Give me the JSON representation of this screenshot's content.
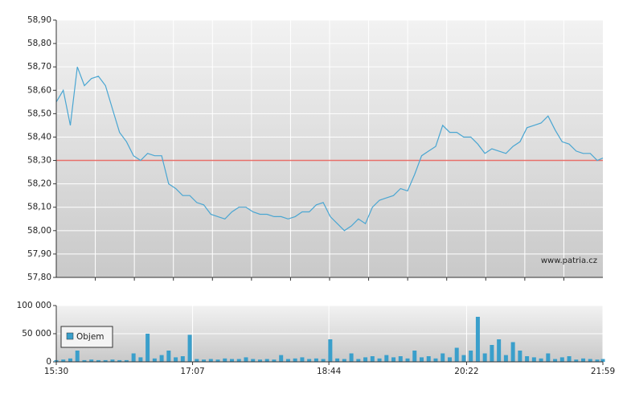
{
  "chart_data": [
    {
      "type": "line",
      "xlim": [
        "15:30",
        "21:59"
      ],
      "ylim": [
        57.8,
        58.9
      ],
      "yticks": [
        {
          "value": 57.8,
          "label": "57,80"
        },
        {
          "value": 57.9,
          "label": "57,90"
        },
        {
          "value": 58.0,
          "label": "58,00"
        },
        {
          "value": 58.1,
          "label": "58,10"
        },
        {
          "value": 58.2,
          "label": "58,20"
        },
        {
          "value": 58.3,
          "label": "58,30"
        },
        {
          "value": 58.4,
          "label": "58,40"
        },
        {
          "value": 58.5,
          "label": "58,50"
        },
        {
          "value": 58.6,
          "label": "58,60"
        },
        {
          "value": 58.7,
          "label": "58,70"
        },
        {
          "value": 58.8,
          "label": "58,80"
        },
        {
          "value": 58.9,
          "label": "58,90"
        }
      ],
      "grid": true,
      "reference_line": {
        "value": 58.3,
        "color": "#e8706a"
      },
      "annotation": "www.patria.cz",
      "x": [
        "15:30",
        "15:35",
        "15:40",
        "15:45",
        "15:50",
        "15:55",
        "16:00",
        "16:05",
        "16:10",
        "16:15",
        "16:20",
        "16:25",
        "16:30",
        "16:35",
        "16:40",
        "16:45",
        "16:50",
        "16:55",
        "17:00",
        "17:05",
        "17:10",
        "17:15",
        "17:20",
        "17:25",
        "17:30",
        "17:35",
        "17:40",
        "17:45",
        "17:50",
        "17:55",
        "18:00",
        "18:05",
        "18:10",
        "18:15",
        "18:20",
        "18:25",
        "18:30",
        "18:35",
        "18:40",
        "18:45",
        "18:50",
        "18:55",
        "19:00",
        "19:05",
        "19:10",
        "19:15",
        "19:20",
        "19:25",
        "19:30",
        "19:35",
        "19:40",
        "19:45",
        "19:50",
        "19:55",
        "20:00",
        "20:05",
        "20:10",
        "20:15",
        "20:20",
        "20:25",
        "20:30",
        "20:35",
        "20:40",
        "20:45",
        "20:50",
        "20:55",
        "21:00",
        "21:05",
        "21:10",
        "21:15",
        "21:20",
        "21:25",
        "21:30",
        "21:35",
        "21:40",
        "21:45",
        "21:50",
        "21:55",
        "21:59"
      ],
      "series": [
        {
          "color": "#4aa6d2",
          "values": [
            58.55,
            58.6,
            58.45,
            58.7,
            58.62,
            58.65,
            58.66,
            58.62,
            58.52,
            58.42,
            58.38,
            58.32,
            58.3,
            58.33,
            58.32,
            58.32,
            58.2,
            58.18,
            58.15,
            58.15,
            58.12,
            58.11,
            58.07,
            58.06,
            58.05,
            58.08,
            58.1,
            58.1,
            58.08,
            58.07,
            58.07,
            58.06,
            58.06,
            58.05,
            58.06,
            58.08,
            58.08,
            58.11,
            58.12,
            58.06,
            58.03,
            58.0,
            58.02,
            58.05,
            58.03,
            58.1,
            58.13,
            58.14,
            58.15,
            58.18,
            58.17,
            58.24,
            58.32,
            58.34,
            58.36,
            58.45,
            58.42,
            58.42,
            58.4,
            58.4,
            58.37,
            58.33,
            58.35,
            58.34,
            58.33,
            58.36,
            58.38,
            58.44,
            58.45,
            58.46,
            58.49,
            58.43,
            58.38,
            58.37,
            58.34,
            58.33,
            58.33,
            58.3,
            58.31
          ]
        }
      ]
    },
    {
      "type": "bar",
      "xlim": [
        "15:30",
        "21:59"
      ],
      "xticks": [
        "15:30",
        "17:07",
        "18:44",
        "20:22",
        "21:59"
      ],
      "ylim": [
        0,
        100000
      ],
      "yticks": [
        0,
        {
          "value": 50000,
          "label": "50 000"
        },
        {
          "value": 100000,
          "label": "100 000"
        }
      ],
      "grid": true,
      "legend": "top-left",
      "x": [
        "15:30",
        "15:35",
        "15:40",
        "15:45",
        "15:50",
        "15:55",
        "16:00",
        "16:05",
        "16:10",
        "16:15",
        "16:20",
        "16:25",
        "16:30",
        "16:35",
        "16:40",
        "16:45",
        "16:50",
        "16:55",
        "17:00",
        "17:05",
        "17:10",
        "17:15",
        "17:20",
        "17:25",
        "17:30",
        "17:35",
        "17:40",
        "17:45",
        "17:50",
        "17:55",
        "18:00",
        "18:05",
        "18:10",
        "18:15",
        "18:20",
        "18:25",
        "18:30",
        "18:35",
        "18:40",
        "18:45",
        "18:50",
        "18:55",
        "19:00",
        "19:05",
        "19:10",
        "19:15",
        "19:20",
        "19:25",
        "19:30",
        "19:35",
        "19:40",
        "19:45",
        "19:50",
        "19:55",
        "20:00",
        "20:05",
        "20:10",
        "20:15",
        "20:20",
        "20:25",
        "20:30",
        "20:35",
        "20:40",
        "20:45",
        "20:50",
        "20:55",
        "21:00",
        "21:05",
        "21:10",
        "21:15",
        "21:20",
        "21:25",
        "21:30",
        "21:35",
        "21:40",
        "21:45",
        "21:50",
        "21:55",
        "21:59"
      ],
      "series": [
        {
          "name": "Objem",
          "color": "#3a9fcb",
          "values": [
            3000,
            4000,
            6000,
            20000,
            3000,
            4000,
            3000,
            3000,
            4000,
            3000,
            3000,
            15000,
            8000,
            50000,
            6000,
            12000,
            20000,
            8000,
            10000,
            48000,
            5000,
            4000,
            5000,
            4000,
            6000,
            5000,
            5000,
            8000,
            5000,
            4000,
            5000,
            4000,
            12000,
            5000,
            6000,
            8000,
            5000,
            6000,
            5000,
            40000,
            6000,
            5000,
            15000,
            5000,
            8000,
            10000,
            6000,
            12000,
            8000,
            10000,
            6000,
            20000,
            8000,
            10000,
            6000,
            15000,
            8000,
            25000,
            12000,
            20000,
            80000,
            15000,
            30000,
            40000,
            12000,
            35000,
            20000,
            10000,
            8000,
            6000,
            15000,
            5000,
            8000,
            10000,
            4000,
            6000,
            5000,
            4000,
            5000
          ]
        }
      ]
    }
  ]
}
